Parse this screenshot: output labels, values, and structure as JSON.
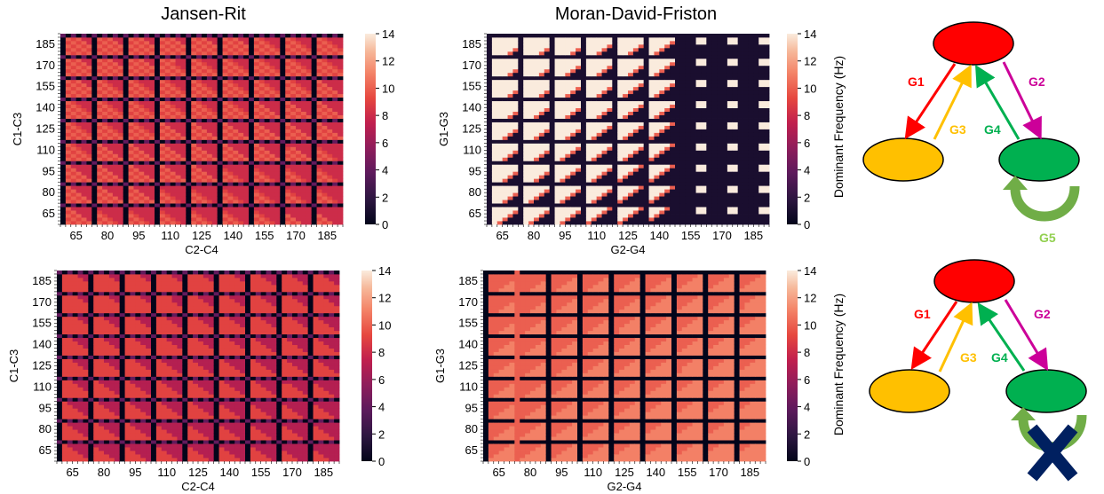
{
  "titles": {
    "left": "Jansen-Rit",
    "middle": "Moran-David-Friston"
  },
  "colorbar_label": "Dominant Frequency (Hz)",
  "colorbar_ticks": [
    "0",
    "2",
    "4",
    "6",
    "8",
    "10",
    "12",
    "14"
  ],
  "colormap": "rocket",
  "chart_data": [
    {
      "type": "heatmap",
      "model": "Jansen-Rit",
      "row": "top",
      "xlabel": "C2-C4",
      "ylabel": "C1-C3",
      "x_ticks": [
        "65",
        "80",
        "95",
        "110",
        "125",
        "140",
        "155",
        "170",
        "185"
      ],
      "y_ticks": [
        "185",
        "170",
        "155",
        "140",
        "125",
        "110",
        "95",
        "80",
        "65"
      ],
      "value_range": [
        0,
        14
      ],
      "dominant_values_hz": [
        0,
        4,
        8,
        9,
        10
      ],
      "grid": false
    },
    {
      "type": "heatmap",
      "model": "Moran-David-Friston",
      "row": "top",
      "xlabel": "G2-G4",
      "ylabel": "G1-G3",
      "x_ticks": [
        "65",
        "80",
        "95",
        "110",
        "125",
        "140",
        "155",
        "170",
        "185"
      ],
      "y_ticks": [
        "185",
        "170",
        "155",
        "140",
        "125",
        "110",
        "95",
        "80",
        "65"
      ],
      "value_range": [
        0,
        14
      ],
      "dominant_values_hz": [
        1,
        10,
        13,
        14
      ],
      "grid": false
    },
    {
      "type": "heatmap",
      "model": "Jansen-Rit",
      "row": "bottom",
      "xlabel": "C2-C4",
      "ylabel": "C1-C3",
      "x_ticks": [
        "65",
        "80",
        "95",
        "110",
        "125",
        "140",
        "155",
        "170",
        "185"
      ],
      "y_ticks": [
        "185",
        "170",
        "155",
        "140",
        "125",
        "110",
        "95",
        "80",
        "65"
      ],
      "value_range": [
        0,
        14
      ],
      "dominant_values_hz": [
        0,
        4,
        7,
        8,
        9
      ],
      "grid": false
    },
    {
      "type": "heatmap",
      "model": "Moran-David-Friston",
      "row": "bottom",
      "xlabel": "G2-G4",
      "ylabel": "G1-G3",
      "x_ticks": [
        "65",
        "80",
        "95",
        "110",
        "125",
        "140",
        "155",
        "170",
        "185"
      ],
      "y_ticks": [
        "185",
        "170",
        "155",
        "140",
        "125",
        "110",
        "95",
        "80",
        "65"
      ],
      "value_range": [
        0,
        14
      ],
      "dominant_values_hz": [
        0,
        8,
        10,
        11
      ],
      "grid": false
    }
  ],
  "diagrams": [
    {
      "edges": [
        "G1",
        "G2",
        "G3",
        "G4",
        "G5"
      ],
      "node_colors": [
        "#ff0000",
        "#ffc000",
        "#00b050"
      ],
      "edge_colors": {
        "G1": "#ff0000",
        "G2": "#cc0099",
        "G3": "#ffc000",
        "G4": "#00b050",
        "G5": "#70ad47"
      }
    },
    {
      "edges": [
        "G1",
        "G2",
        "G3",
        "G4"
      ],
      "removed_marker": "x-cross",
      "cross_color": "#002060"
    }
  ]
}
